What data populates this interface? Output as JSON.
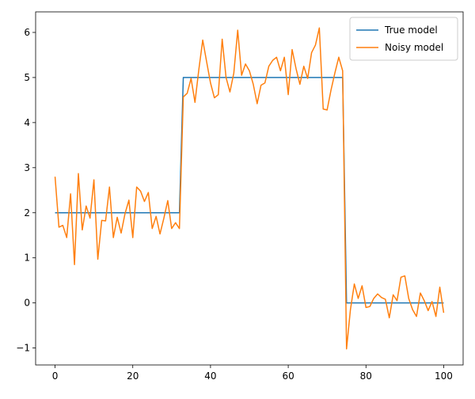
{
  "chart_data": {
    "type": "line",
    "x": [
      0,
      1,
      2,
      3,
      4,
      5,
      6,
      7,
      8,
      9,
      10,
      11,
      12,
      13,
      14,
      15,
      16,
      17,
      18,
      19,
      20,
      21,
      22,
      23,
      24,
      25,
      26,
      27,
      28,
      29,
      30,
      31,
      32,
      33,
      34,
      35,
      36,
      37,
      38,
      39,
      40,
      41,
      42,
      43,
      44,
      45,
      46,
      47,
      48,
      49,
      50,
      51,
      52,
      53,
      54,
      55,
      56,
      57,
      58,
      59,
      60,
      61,
      62,
      63,
      64,
      65,
      66,
      67,
      68,
      69,
      70,
      71,
      72,
      73,
      74,
      75,
      76,
      77,
      78,
      79,
      80,
      81,
      82,
      83,
      84,
      85,
      86,
      87,
      88,
      89,
      90,
      91,
      92,
      93,
      94,
      95,
      96,
      97,
      98,
      99,
      100
    ],
    "series": [
      {
        "name": "True model",
        "color": "#1f77b4",
        "values": [
          2,
          2,
          2,
          2,
          2,
          2,
          2,
          2,
          2,
          2,
          2,
          2,
          2,
          2,
          2,
          2,
          2,
          2,
          2,
          2,
          2,
          2,
          2,
          2,
          2,
          2,
          2,
          2,
          2,
          2,
          2,
          2,
          2,
          5,
          5,
          5,
          5,
          5,
          5,
          5,
          5,
          5,
          5,
          5,
          5,
          5,
          5,
          5,
          5,
          5,
          5,
          5,
          5,
          5,
          5,
          5,
          5,
          5,
          5,
          5,
          5,
          5,
          5,
          5,
          5,
          5,
          5,
          5,
          5,
          5,
          5,
          5,
          5,
          5,
          5,
          0,
          0,
          0,
          0,
          0,
          0,
          0,
          0,
          0,
          0,
          0,
          0,
          0,
          0,
          0,
          0,
          0,
          0,
          0,
          0,
          0,
          0,
          0,
          0,
          0,
          0
        ]
      },
      {
        "name": "Noisy model",
        "color": "#ff7f0e",
        "values": [
          2.8,
          1.68,
          1.72,
          1.45,
          2.42,
          0.85,
          2.87,
          1.62,
          2.15,
          1.88,
          2.73,
          0.97,
          1.83,
          1.82,
          2.57,
          1.45,
          1.9,
          1.55,
          1.98,
          2.28,
          1.45,
          2.57,
          2.48,
          2.25,
          2.45,
          1.65,
          1.92,
          1.53,
          1.88,
          2.27,
          1.65,
          1.78,
          1.65,
          4.57,
          4.65,
          4.98,
          4.45,
          5.18,
          5.83,
          5.35,
          4.88,
          4.55,
          4.62,
          5.85,
          5.0,
          4.68,
          5.1,
          6.05,
          5.05,
          5.3,
          5.15,
          4.85,
          4.42,
          4.83,
          4.88,
          5.25,
          5.38,
          5.45,
          5.15,
          5.45,
          4.62,
          5.62,
          5.2,
          4.85,
          5.25,
          4.98,
          5.55,
          5.72,
          6.1,
          4.3,
          4.28,
          4.72,
          5.1,
          5.45,
          5.15,
          -1.02,
          -0.15,
          0.42,
          0.1,
          0.38,
          -0.1,
          -0.08,
          0.1,
          0.2,
          0.12,
          0.08,
          -0.33,
          0.18,
          0.05,
          0.57,
          0.6,
          0.1,
          -0.15,
          -0.3,
          0.22,
          0.05,
          -0.17,
          0.03,
          -0.3,
          0.35,
          -0.22
        ]
      }
    ],
    "xlim": [
      -5,
      105
    ],
    "xticks": [
      0,
      20,
      40,
      60,
      80,
      100
    ],
    "ylim": [
      -1.376,
      6.456
    ],
    "yticks": [
      {
        "value": -1,
        "label": "−1"
      },
      0,
      1,
      2,
      3,
      4,
      5,
      6
    ],
    "legend": "upper right"
  }
}
